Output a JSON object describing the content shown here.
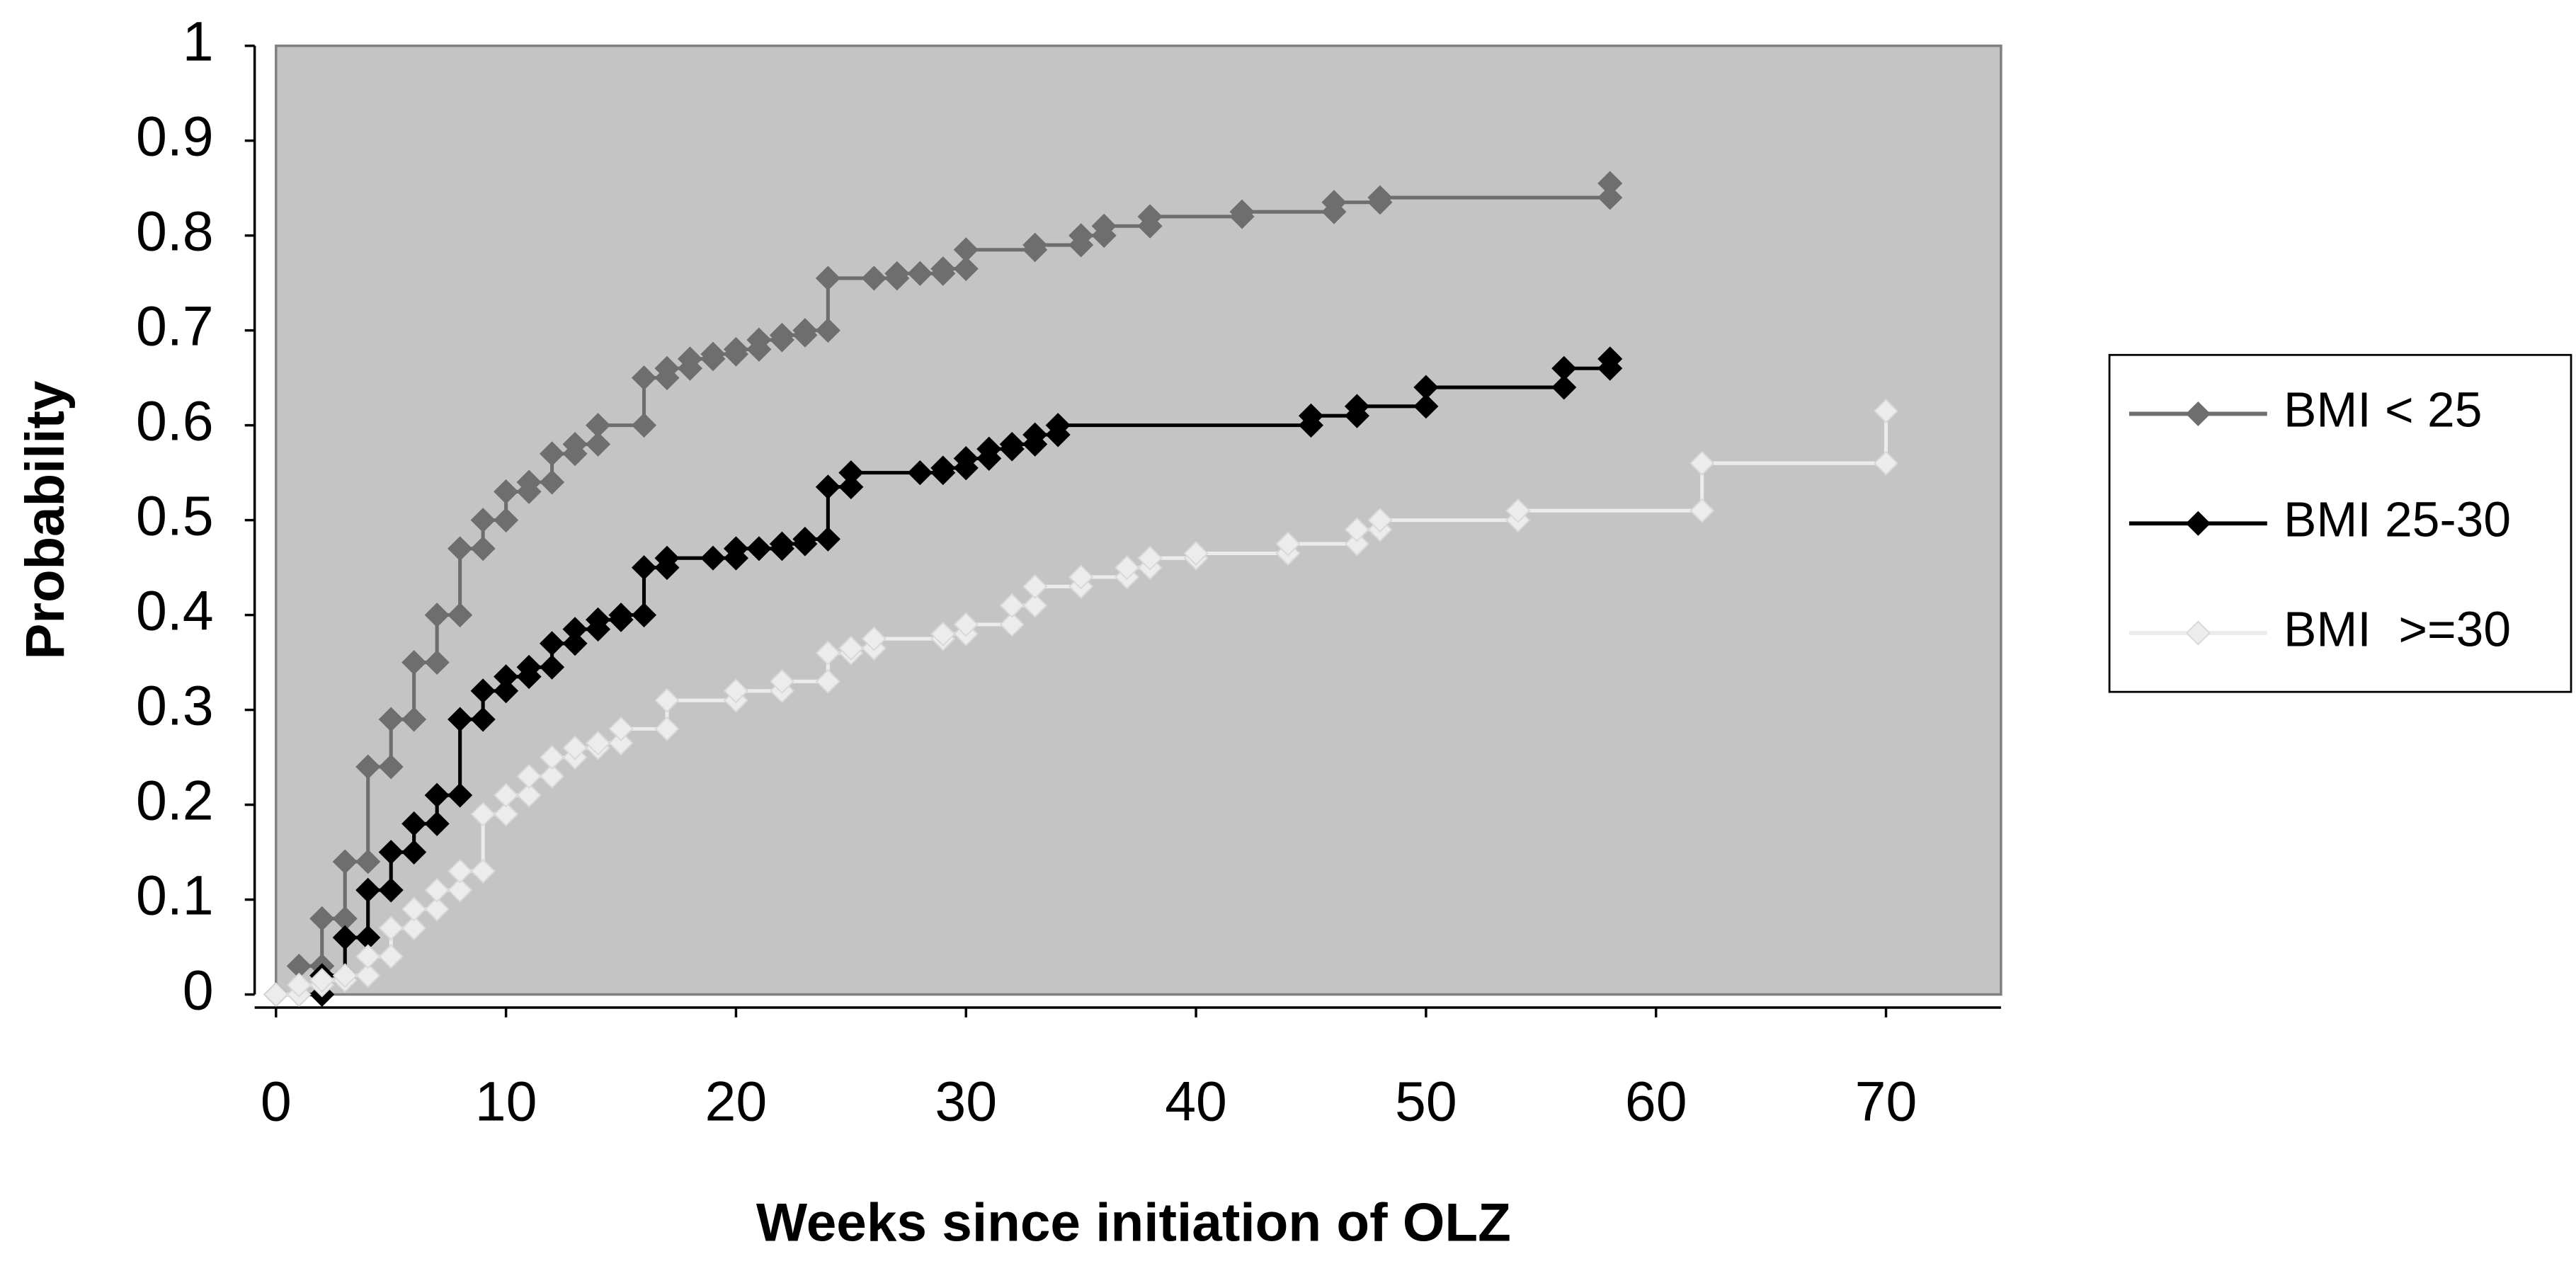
{
  "chart_data": {
    "type": "step",
    "x_label": "Weeks since initiation of OLZ",
    "y_label": "Probability",
    "xlim": [
      0,
      75
    ],
    "ylim": [
      0,
      1
    ],
    "xticks": [
      0,
      10,
      20,
      30,
      40,
      50,
      60,
      70
    ],
    "yticks": [
      0,
      0.1,
      0.2,
      0.3,
      0.4,
      0.5,
      0.6,
      0.7,
      0.8,
      0.9,
      1
    ],
    "legend": "right",
    "background": "#c4c4c4",
    "series": [
      {
        "name": "BMI < 25",
        "color": "#6e6e6e",
        "x": [
          0,
          1,
          2,
          3,
          4,
          5,
          6,
          7,
          8,
          9,
          10,
          11,
          12,
          13,
          14,
          16,
          17,
          18,
          19,
          20,
          21,
          22,
          23,
          24,
          26,
          27,
          28,
          29,
          30,
          33,
          35,
          36,
          38,
          42,
          46,
          48,
          58
        ],
        "values": [
          0,
          0.03,
          0.08,
          0.14,
          0.24,
          0.29,
          0.35,
          0.4,
          0.47,
          0.5,
          0.53,
          0.54,
          0.57,
          0.58,
          0.6,
          0.65,
          0.66,
          0.67,
          0.675,
          0.68,
          0.69,
          0.695,
          0.7,
          0.755,
          0.755,
          0.76,
          0.76,
          0.765,
          0.785,
          0.79,
          0.8,
          0.81,
          0.82,
          0.825,
          0.835,
          0.84,
          0.855
        ]
      },
      {
        "name": "BMI 25-30",
        "color": "#000000",
        "x": [
          0,
          2,
          3,
          4,
          5,
          6,
          7,
          8,
          9,
          10,
          11,
          12,
          13,
          14,
          15,
          16,
          17,
          19,
          20,
          21,
          22,
          23,
          24,
          25,
          28,
          29,
          30,
          31,
          32,
          33,
          34,
          45,
          47,
          50,
          56,
          58
        ],
        "values": [
          0,
          0.02,
          0.06,
          0.11,
          0.15,
          0.18,
          0.21,
          0.29,
          0.32,
          0.335,
          0.345,
          0.37,
          0.385,
          0.395,
          0.4,
          0.45,
          0.46,
          0.46,
          0.47,
          0.47,
          0.475,
          0.48,
          0.535,
          0.55,
          0.55,
          0.555,
          0.565,
          0.575,
          0.58,
          0.59,
          0.6,
          0.61,
          0.62,
          0.64,
          0.66,
          0.67
        ]
      },
      {
        "name": "BMI  >=30",
        "color": "#ececec",
        "x": [
          0,
          1,
          2,
          3,
          4,
          5,
          6,
          7,
          8,
          9,
          10,
          11,
          12,
          13,
          14,
          15,
          17,
          20,
          22,
          24,
          25,
          26,
          29,
          30,
          32,
          33,
          35,
          37,
          38,
          40,
          44,
          47,
          48,
          54,
          62,
          70
        ],
        "values": [
          0,
          0.01,
          0.015,
          0.02,
          0.04,
          0.07,
          0.09,
          0.11,
          0.13,
          0.19,
          0.21,
          0.23,
          0.25,
          0.26,
          0.265,
          0.28,
          0.31,
          0.32,
          0.33,
          0.36,
          0.365,
          0.375,
          0.38,
          0.39,
          0.41,
          0.43,
          0.44,
          0.45,
          0.46,
          0.465,
          0.475,
          0.49,
          0.5,
          0.51,
          0.56,
          0.615
        ]
      }
    ]
  }
}
